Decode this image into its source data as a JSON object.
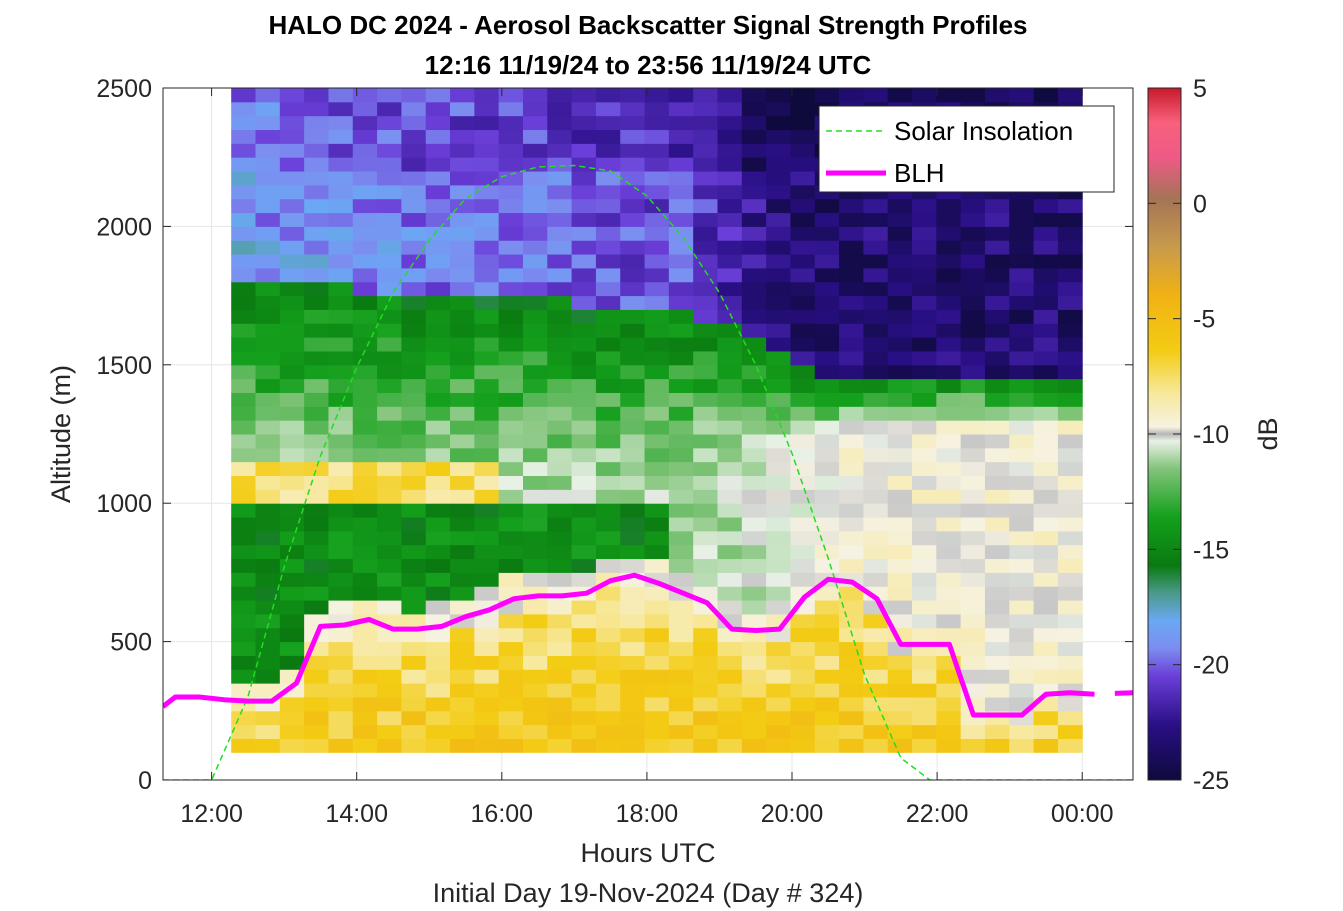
{
  "chart_data": {
    "type": "heatmap",
    "title": "HALO DC 2024 - Aerosol Backscatter Signal Strength Profiles",
    "subtitle": "12:16 11/19/24 to 23:56 11/19/24  UTC",
    "xlabel": "Hours UTC",
    "xlabel2": "Initial Day 19-Nov-2024 (Day # 324)",
    "ylabel": "Altitude (m)",
    "colorbar_label": "dB",
    "xlim": [
      11.33,
      24.7
    ],
    "ylim": [
      0,
      2500
    ],
    "x_ticks": [
      12,
      14,
      16,
      18,
      20,
      22,
      24
    ],
    "x_tick_labels": [
      "12:00",
      "14:00",
      "16:00",
      "18:00",
      "20:00",
      "22:00",
      "00:00"
    ],
    "y_ticks": [
      0,
      500,
      1000,
      1500,
      2000,
      2500
    ],
    "y_tick_labels": [
      "0",
      "500",
      "1000",
      "1500",
      "2000",
      "2500"
    ],
    "clim": [
      -25,
      5
    ],
    "colorbar_ticks": [
      5,
      0,
      -5,
      -10,
      -15,
      -20,
      -25
    ],
    "colorbar_tick_labels": [
      "5",
      "0",
      "-5",
      "-10",
      "-15",
      "-20",
      "-25"
    ],
    "grid": true,
    "legend_position": "top-right",
    "heatmap": {
      "x_start": 12.27,
      "x_end": 24.0,
      "y_start": 100,
      "y_end": 2500,
      "n_cols": 35,
      "n_rows": 48,
      "value_units": "dB",
      "description_points": [
        {
          "hour": 12.5,
          "layers_dB": {
            "0-500": -6,
            "500-850": -13,
            "850-1000": -16,
            "1000-1150": -7,
            "1150-1800": -14,
            "1800-2100": -17,
            "2100-2500": -20
          }
        },
        {
          "hour": 17,
          "layers_dB": {
            "0-600": -6,
            "600-1000": -16,
            "1000-1500": -11,
            "1500-1750": -15,
            "1750-2500": -21
          }
        },
        {
          "hour": 21,
          "layers_dB": {
            "0-500": -7,
            "500-1300": -10,
            "1300-1500": -15,
            "1500-2500": -24
          }
        },
        {
          "hour": 23.5,
          "layers_dB": {
            "0-400": -7,
            "400-1300": -10,
            "1300-1550": -15,
            "1550-2500": -23
          }
        }
      ]
    },
    "series": [
      {
        "name": "Solar Insolation",
        "style": "dashed",
        "color": "#22dd22",
        "x": [
          11.33,
          12.0,
          12.5,
          13.0,
          13.5,
          14.0,
          14.5,
          15.0,
          15.5,
          16.0,
          16.5,
          17.0,
          17.5,
          18.0,
          18.5,
          19.0,
          19.5,
          20.0,
          20.5,
          21.0,
          21.5,
          21.9,
          22.0,
          23.0,
          24.7
        ],
        "y": [
          0,
          0,
          300,
          770,
          1170,
          1490,
          1760,
          1950,
          2100,
          2180,
          2215,
          2220,
          2200,
          2110,
          1960,
          1760,
          1500,
          1180,
          800,
          380,
          80,
          0,
          0,
          0,
          0
        ]
      },
      {
        "name": "BLH",
        "color": "#ff00ff",
        "x": [
          11.33,
          11.5,
          11.83,
          12.17,
          12.5,
          12.83,
          13.17,
          13.5,
          13.83,
          14.17,
          14.5,
          14.83,
          15.17,
          15.5,
          15.83,
          16.17,
          16.5,
          16.83,
          17.17,
          17.5,
          17.83,
          18.17,
          18.5,
          18.83,
          19.17,
          19.5,
          19.83,
          20.17,
          20.5,
          20.83,
          21.17,
          21.5,
          21.83,
          22.17,
          22.5,
          22.83,
          23.17,
          23.5,
          23.83,
          24.17,
          24.7
        ],
        "y": [
          265,
          300,
          300,
          290,
          285,
          285,
          350,
          555,
          560,
          580,
          545,
          545,
          555,
          590,
          615,
          655,
          665,
          665,
          675,
          720,
          740,
          710,
          675,
          640,
          545,
          540,
          545,
          660,
          725,
          715,
          655,
          490,
          490,
          490,
          235,
          235,
          235,
          310,
          315,
          310,
          315
        ]
      }
    ]
  }
}
